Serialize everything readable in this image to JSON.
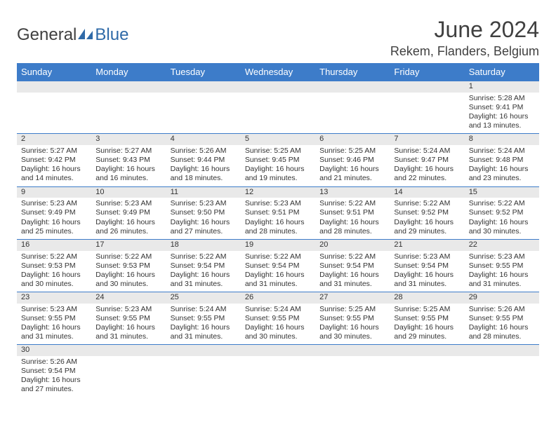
{
  "brand": {
    "part1": "General",
    "part2": "Blue"
  },
  "title": "June 2024",
  "location": "Rekem, Flanders, Belgium",
  "colors": {
    "header_bg": "#3d7cc9",
    "header_text": "#ffffff",
    "daybar_bg": "#e9e9e9",
    "rule": "#3d7cc9",
    "text": "#333333",
    "logo_gray": "#404040",
    "logo_blue": "#2f6aa8"
  },
  "columns": [
    "Sunday",
    "Monday",
    "Tuesday",
    "Wednesday",
    "Thursday",
    "Friday",
    "Saturday"
  ],
  "first_weekday_index": 6,
  "days": [
    {
      "n": 1,
      "sunrise": "5:28 AM",
      "sunset": "9:41 PM",
      "daylight": "16 hours and 13 minutes."
    },
    {
      "n": 2,
      "sunrise": "5:27 AM",
      "sunset": "9:42 PM",
      "daylight": "16 hours and 14 minutes."
    },
    {
      "n": 3,
      "sunrise": "5:27 AM",
      "sunset": "9:43 PM",
      "daylight": "16 hours and 16 minutes."
    },
    {
      "n": 4,
      "sunrise": "5:26 AM",
      "sunset": "9:44 PM",
      "daylight": "16 hours and 18 minutes."
    },
    {
      "n": 5,
      "sunrise": "5:25 AM",
      "sunset": "9:45 PM",
      "daylight": "16 hours and 19 minutes."
    },
    {
      "n": 6,
      "sunrise": "5:25 AM",
      "sunset": "9:46 PM",
      "daylight": "16 hours and 21 minutes."
    },
    {
      "n": 7,
      "sunrise": "5:24 AM",
      "sunset": "9:47 PM",
      "daylight": "16 hours and 22 minutes."
    },
    {
      "n": 8,
      "sunrise": "5:24 AM",
      "sunset": "9:48 PM",
      "daylight": "16 hours and 23 minutes."
    },
    {
      "n": 9,
      "sunrise": "5:23 AM",
      "sunset": "9:49 PM",
      "daylight": "16 hours and 25 minutes."
    },
    {
      "n": 10,
      "sunrise": "5:23 AM",
      "sunset": "9:49 PM",
      "daylight": "16 hours and 26 minutes."
    },
    {
      "n": 11,
      "sunrise": "5:23 AM",
      "sunset": "9:50 PM",
      "daylight": "16 hours and 27 minutes."
    },
    {
      "n": 12,
      "sunrise": "5:23 AM",
      "sunset": "9:51 PM",
      "daylight": "16 hours and 28 minutes."
    },
    {
      "n": 13,
      "sunrise": "5:22 AM",
      "sunset": "9:51 PM",
      "daylight": "16 hours and 28 minutes."
    },
    {
      "n": 14,
      "sunrise": "5:22 AM",
      "sunset": "9:52 PM",
      "daylight": "16 hours and 29 minutes."
    },
    {
      "n": 15,
      "sunrise": "5:22 AM",
      "sunset": "9:52 PM",
      "daylight": "16 hours and 30 minutes."
    },
    {
      "n": 16,
      "sunrise": "5:22 AM",
      "sunset": "9:53 PM",
      "daylight": "16 hours and 30 minutes."
    },
    {
      "n": 17,
      "sunrise": "5:22 AM",
      "sunset": "9:53 PM",
      "daylight": "16 hours and 30 minutes."
    },
    {
      "n": 18,
      "sunrise": "5:22 AM",
      "sunset": "9:54 PM",
      "daylight": "16 hours and 31 minutes."
    },
    {
      "n": 19,
      "sunrise": "5:22 AM",
      "sunset": "9:54 PM",
      "daylight": "16 hours and 31 minutes."
    },
    {
      "n": 20,
      "sunrise": "5:22 AM",
      "sunset": "9:54 PM",
      "daylight": "16 hours and 31 minutes."
    },
    {
      "n": 21,
      "sunrise": "5:23 AM",
      "sunset": "9:54 PM",
      "daylight": "16 hours and 31 minutes."
    },
    {
      "n": 22,
      "sunrise": "5:23 AM",
      "sunset": "9:55 PM",
      "daylight": "16 hours and 31 minutes."
    },
    {
      "n": 23,
      "sunrise": "5:23 AM",
      "sunset": "9:55 PM",
      "daylight": "16 hours and 31 minutes."
    },
    {
      "n": 24,
      "sunrise": "5:23 AM",
      "sunset": "9:55 PM",
      "daylight": "16 hours and 31 minutes."
    },
    {
      "n": 25,
      "sunrise": "5:24 AM",
      "sunset": "9:55 PM",
      "daylight": "16 hours and 31 minutes."
    },
    {
      "n": 26,
      "sunrise": "5:24 AM",
      "sunset": "9:55 PM",
      "daylight": "16 hours and 30 minutes."
    },
    {
      "n": 27,
      "sunrise": "5:25 AM",
      "sunset": "9:55 PM",
      "daylight": "16 hours and 30 minutes."
    },
    {
      "n": 28,
      "sunrise": "5:25 AM",
      "sunset": "9:55 PM",
      "daylight": "16 hours and 29 minutes."
    },
    {
      "n": 29,
      "sunrise": "5:26 AM",
      "sunset": "9:55 PM",
      "daylight": "16 hours and 28 minutes."
    },
    {
      "n": 30,
      "sunrise": "5:26 AM",
      "sunset": "9:54 PM",
      "daylight": "16 hours and 27 minutes."
    }
  ],
  "labels": {
    "sunrise_prefix": "Sunrise: ",
    "sunset_prefix": "Sunset: ",
    "daylight_prefix": "Daylight: "
  }
}
